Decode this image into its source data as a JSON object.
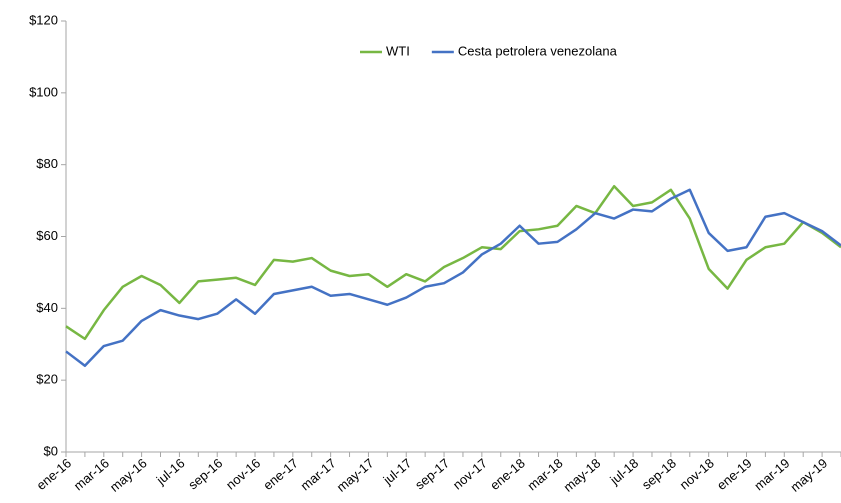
{
  "chart_data": {
    "type": "line",
    "categories": [
      "ene-16",
      null,
      "mar-16",
      null,
      "may-16",
      null,
      "jul-16",
      null,
      "sep-16",
      null,
      "nov-16",
      null,
      "ene-17",
      null,
      "mar-17",
      null,
      "may-17",
      null,
      "jul-17",
      null,
      "sep-17",
      null,
      "nov-17",
      null,
      "ene-18",
      null,
      "mar-18",
      null,
      "may-18",
      null,
      "jul-18",
      null,
      "sep-18",
      null,
      "nov-18",
      null,
      "ene-19",
      null,
      "mar-19",
      null,
      "may-19",
      null
    ],
    "series": [
      {
        "name": "WTI",
        "color": "#77b743",
        "values": [
          35,
          31.5,
          39.5,
          46,
          49,
          46.5,
          41.5,
          47.5,
          48,
          48.5,
          46.5,
          53.5,
          53,
          54,
          50.5,
          49,
          49.5,
          46,
          49.5,
          47.5,
          51.5,
          54,
          57,
          56.5,
          61.5,
          62,
          63,
          68.5,
          66.5,
          74,
          68.5,
          69.5,
          73,
          65,
          51,
          45.5,
          53.5,
          57,
          58,
          64,
          61,
          57
        ]
      },
      {
        "name": "Cesta petrolera venezolana",
        "color": "#4472c4",
        "values": [
          28,
          24,
          29.5,
          31,
          36.5,
          39.5,
          38,
          37,
          38.5,
          42.5,
          38.5,
          44,
          45,
          46,
          43.5,
          44,
          42.5,
          41,
          43,
          46,
          47,
          50,
          55,
          58,
          63,
          58,
          58.5,
          62,
          66.5,
          65,
          67.5,
          67,
          70.5,
          73,
          61,
          56,
          57,
          65.5,
          66.5,
          64,
          61.5,
          57.5
        ]
      }
    ],
    "ylim": [
      0,
      120
    ],
    "yticks": [
      {
        "value": 0,
        "label": "$0"
      },
      {
        "value": 20,
        "label": "$20"
      },
      {
        "value": 40,
        "label": "$40"
      },
      {
        "value": 60,
        "label": "$60"
      },
      {
        "value": 80,
        "label": "$80"
      },
      {
        "value": 100,
        "label": "$100"
      },
      {
        "value": 120,
        "label": "$120"
      }
    ],
    "legend": "top"
  }
}
